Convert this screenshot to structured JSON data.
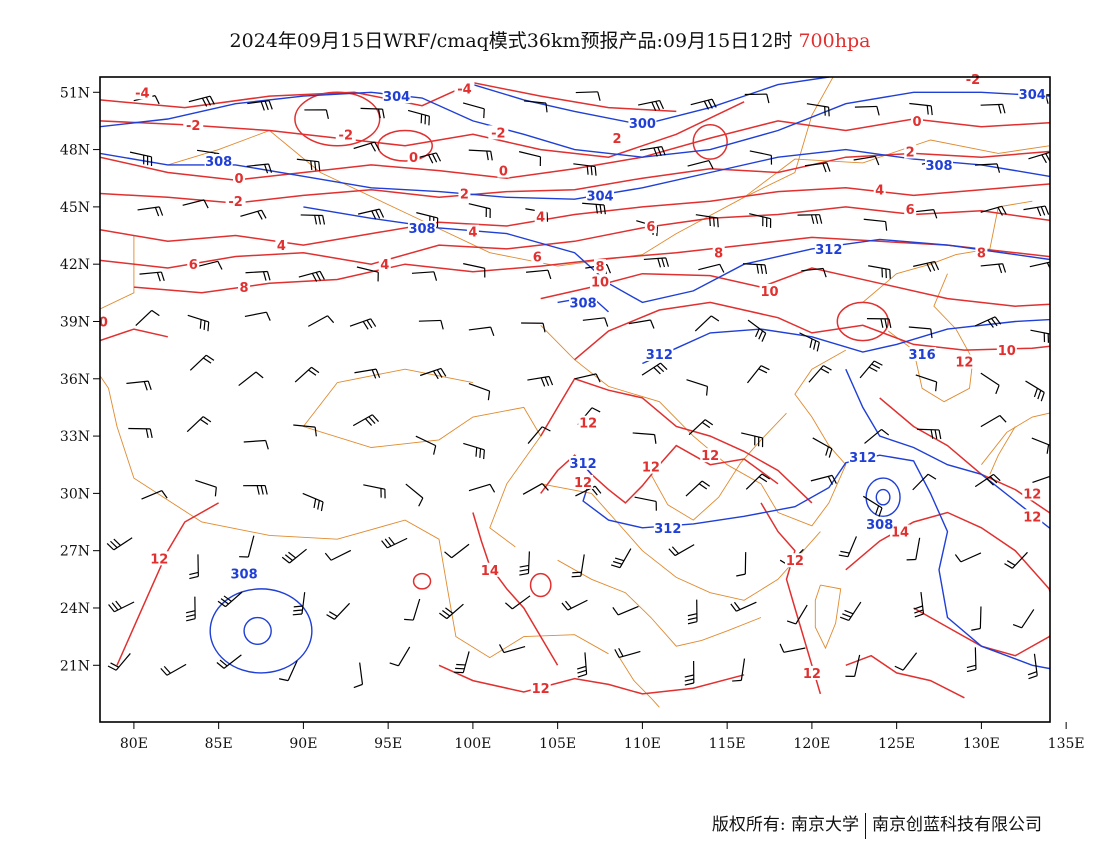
{
  "header": {
    "title": "2024年09月15日WRF/cmaq模式36km预报产品:09月15日12时",
    "level": "700hpa"
  },
  "footer": {
    "copyright": "版权所有: 南京大学",
    "company": "南京创蓝科技有限公司"
  },
  "axes": {
    "lat_labels": [
      "51N",
      "48N",
      "45N",
      "42N",
      "39N",
      "36N",
      "33N",
      "30N",
      "27N",
      "24N",
      "21N"
    ],
    "lon_labels": [
      "80E",
      "85E",
      "90E",
      "95E",
      "100E",
      "105E",
      "110E",
      "115E",
      "120E",
      "125E",
      "130E",
      "135E"
    ]
  },
  "legend_colors": {
    "temperature": "#e0302f",
    "geopotential": "#1f3fd6",
    "border": "#e08a2e",
    "wind": "#000000"
  },
  "contour_labels": {
    "temperature": [
      {
        "text": "-4",
        "lon": 99.5,
        "lat": 51.2
      },
      {
        "text": "-4",
        "lon": 80.5,
        "lat": 51.0
      },
      {
        "text": "-2",
        "lon": 83.5,
        "lat": 49.3
      },
      {
        "text": "-2",
        "lon": 92.5,
        "lat": 48.8
      },
      {
        "text": "-2",
        "lon": 101.5,
        "lat": 48.9
      },
      {
        "text": "2",
        "lon": 108.5,
        "lat": 48.6
      },
      {
        "text": "0",
        "lon": 96.5,
        "lat": 47.6
      },
      {
        "text": "0",
        "lon": 101.8,
        "lat": 46.9
      },
      {
        "text": "0",
        "lon": 86.2,
        "lat": 46.5
      },
      {
        "text": "-2",
        "lon": 86.0,
        "lat": 45.3
      },
      {
        "text": "2",
        "lon": 99.5,
        "lat": 45.7
      },
      {
        "text": "4",
        "lon": 104.0,
        "lat": 44.5
      },
      {
        "text": "4",
        "lon": 100.0,
        "lat": 43.7
      },
      {
        "text": "4",
        "lon": 88.7,
        "lat": 43.0
      },
      {
        "text": "6",
        "lon": 83.5,
        "lat": 42.0
      },
      {
        "text": "4",
        "lon": 94.8,
        "lat": 42.0
      },
      {
        "text": "6",
        "lon": 103.8,
        "lat": 42.4
      },
      {
        "text": "6",
        "lon": 110.5,
        "lat": 44.0
      },
      {
        "text": "8",
        "lon": 107.5,
        "lat": 41.9
      },
      {
        "text": "8",
        "lon": 86.5,
        "lat": 40.8
      },
      {
        "text": "10",
        "lon": 107.5,
        "lat": 41.1
      },
      {
        "text": "8",
        "lon": 114.5,
        "lat": 42.6
      },
      {
        "text": "10",
        "lon": 117.5,
        "lat": 40.6
      },
      {
        "text": "6",
        "lon": 125.8,
        "lat": 44.9
      },
      {
        "text": "8",
        "lon": 130.0,
        "lat": 42.6
      },
      {
        "text": "4",
        "lon": 124.0,
        "lat": 45.9
      },
      {
        "text": "2",
        "lon": 125.8,
        "lat": 47.9
      },
      {
        "text": "0",
        "lon": 126.2,
        "lat": 49.5
      },
      {
        "text": "-2",
        "lon": 129.5,
        "lat": 51.7
      },
      {
        "text": "0",
        "lon": 78.2,
        "lat": 39.0
      },
      {
        "text": "10",
        "lon": 131.5,
        "lat": 37.5
      },
      {
        "text": "12",
        "lon": 129.0,
        "lat": 36.9
      },
      {
        "text": "12",
        "lon": 106.8,
        "lat": 33.7
      },
      {
        "text": "12",
        "lon": 110.5,
        "lat": 31.4
      },
      {
        "text": "12",
        "lon": 114.0,
        "lat": 32.0
      },
      {
        "text": "12",
        "lon": 106.5,
        "lat": 30.6
      },
      {
        "text": "14",
        "lon": 125.2,
        "lat": 28.0
      },
      {
        "text": "12",
        "lon": 119.0,
        "lat": 26.5
      },
      {
        "text": "12",
        "lon": 133.0,
        "lat": 30.0
      },
      {
        "text": "12",
        "lon": 133.0,
        "lat": 28.8
      },
      {
        "text": "14",
        "lon": 101.0,
        "lat": 26.0
      },
      {
        "text": "12",
        "lon": 81.5,
        "lat": 26.6
      },
      {
        "text": "12",
        "lon": 104.0,
        "lat": 19.8
      },
      {
        "text": "12",
        "lon": 120.0,
        "lat": 20.6
      }
    ],
    "geopotential": [
      {
        "text": "304",
        "lon": 95.5,
        "lat": 50.8
      },
      {
        "text": "300",
        "lon": 110.0,
        "lat": 49.4
      },
      {
        "text": "304",
        "lon": 133.0,
        "lat": 50.9
      },
      {
        "text": "308",
        "lon": 85.0,
        "lat": 47.4
      },
      {
        "text": "308",
        "lon": 127.5,
        "lat": 47.2
      },
      {
        "text": "304",
        "lon": 107.5,
        "lat": 45.6
      },
      {
        "text": "308",
        "lon": 97.0,
        "lat": 43.9
      },
      {
        "text": "312",
        "lon": 121.0,
        "lat": 42.8
      },
      {
        "text": "308",
        "lon": 106.5,
        "lat": 40.0
      },
      {
        "text": "316",
        "lon": 126.5,
        "lat": 37.3
      },
      {
        "text": "312",
        "lon": 111.0,
        "lat": 37.3
      },
      {
        "text": "312",
        "lon": 106.5,
        "lat": 31.6
      },
      {
        "text": "312",
        "lon": 123.0,
        "lat": 31.9
      },
      {
        "text": "312",
        "lon": 111.5,
        "lat": 28.2
      },
      {
        "text": "308",
        "lon": 124.0,
        "lat": 28.4
      },
      {
        "text": "308",
        "lon": 86.5,
        "lat": 25.8
      }
    ]
  }
}
